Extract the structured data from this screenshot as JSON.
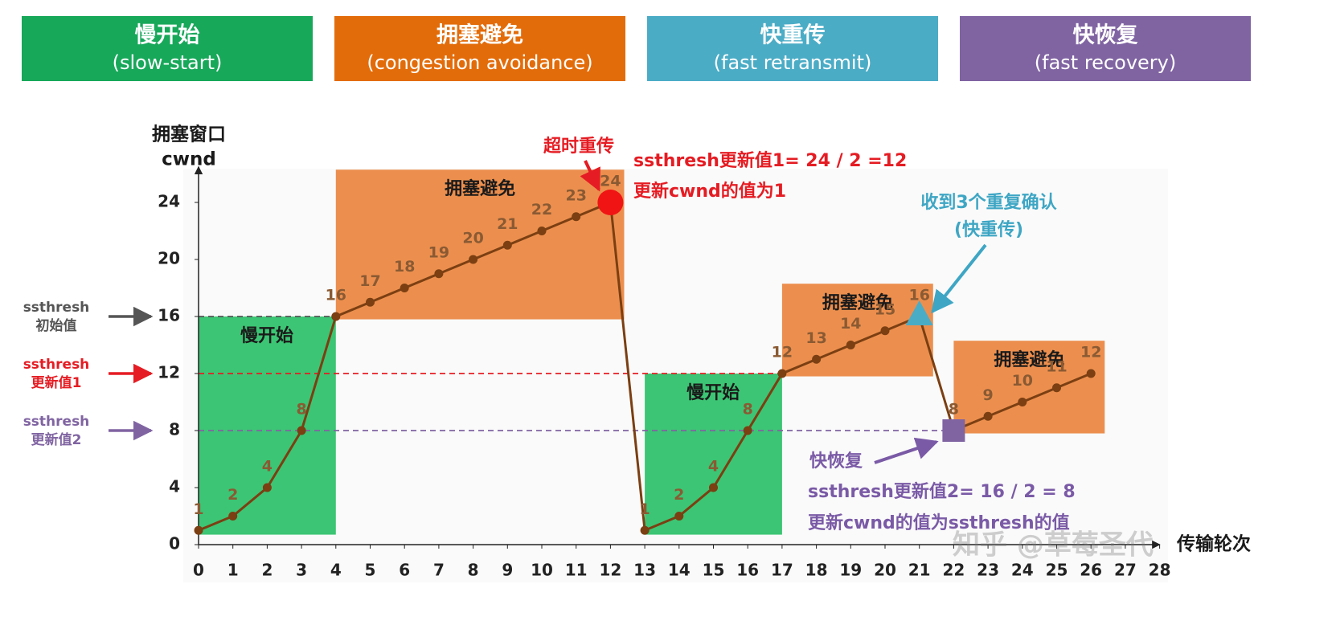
{
  "header": {
    "phases": [
      {
        "title": "慢开始",
        "subtitle": "(slow-start)",
        "color": "#17a85a"
      },
      {
        "title": "拥塞避免",
        "subtitle": "(congestion avoidance)",
        "color": "#e36c0a"
      },
      {
        "title": "快重传",
        "subtitle": "(fast retransmit)",
        "color": "#4bacc6"
      },
      {
        "title": "快恢复",
        "subtitle": "(fast recovery)",
        "color": "#8064a2"
      }
    ]
  },
  "chart_data": {
    "type": "line",
    "y_label": [
      "拥塞窗口",
      "cwnd"
    ],
    "x_label": "传输轮次",
    "x": [
      0,
      1,
      2,
      3,
      4,
      5,
      6,
      7,
      8,
      9,
      10,
      11,
      12,
      13,
      14,
      15,
      16,
      17,
      18,
      19,
      20,
      21,
      22,
      23,
      24,
      25,
      26
    ],
    "values": [
      1,
      2,
      4,
      8,
      16,
      17,
      18,
      19,
      20,
      21,
      22,
      23,
      24,
      1,
      2,
      4,
      8,
      12,
      13,
      14,
      15,
      16,
      8,
      9,
      10,
      11,
      12
    ],
    "color": "#7b3f12",
    "xlim": [
      0,
      28
    ],
    "xticks": [
      0,
      1,
      2,
      3,
      4,
      5,
      6,
      7,
      8,
      9,
      10,
      11,
      12,
      13,
      14,
      15,
      16,
      17,
      18,
      19,
      20,
      21,
      22,
      23,
      24,
      25,
      26,
      27,
      28
    ],
    "ylim": [
      0,
      26.5
    ],
    "yticks": [
      0,
      4,
      8,
      12,
      16,
      20,
      24
    ],
    "regions": [
      {
        "label": "慢开始",
        "xrange": [
          0,
          4
        ],
        "color": "#3cc574"
      },
      {
        "label": "拥塞避免",
        "xrange": [
          4,
          12
        ],
        "color": "#ec8f4e"
      },
      {
        "label": "慢开始",
        "xrange": [
          13,
          17
        ],
        "color": "#3cc574"
      },
      {
        "label": "拥塞避免",
        "xrange": [
          17,
          21
        ],
        "color": "#ec8f4e"
      },
      {
        "label": "拥塞避免",
        "xrange": [
          22,
          26
        ],
        "color": "#ec8f4e"
      }
    ],
    "ssthresh": [
      {
        "label": [
          "ssthresh",
          "初始值"
        ],
        "value": 16,
        "until": 4,
        "color": "#555555"
      },
      {
        "label": [
          "ssthresh",
          "更新值1"
        ],
        "value": 12,
        "until": 17,
        "color": "#e51c23"
      },
      {
        "label": [
          "ssthresh",
          "更新值2"
        ],
        "value": 8,
        "until": 22,
        "color": "#8064a2"
      }
    ],
    "markers": [
      {
        "x": 12,
        "shape": "circle",
        "color": "#f01414"
      },
      {
        "x": 21,
        "shape": "triangle",
        "color": "#4bacc6"
      },
      {
        "x": 22,
        "shape": "square",
        "color": "#8064a2"
      }
    ],
    "annotations": [
      {
        "text": [
          "超时重传"
        ],
        "color": "#e51c23"
      },
      {
        "text": [
          "ssthresh更新值1= 24 / 2 =12",
          "更新cwnd的值为1"
        ],
        "color": "#e51c23"
      },
      {
        "text": [
          "收到3个重复确认",
          "(快重传)"
        ],
        "color": "#3ea6c4"
      },
      {
        "text": [
          "快恢复"
        ],
        "color": "#7a5aa6"
      },
      {
        "text": [
          "ssthresh更新值2= 16 / 2 = 8",
          "更新cwnd的值为ssthresh的值"
        ],
        "color": "#7a5aa6"
      }
    ],
    "watermark": "知乎 @草莓圣代"
  }
}
